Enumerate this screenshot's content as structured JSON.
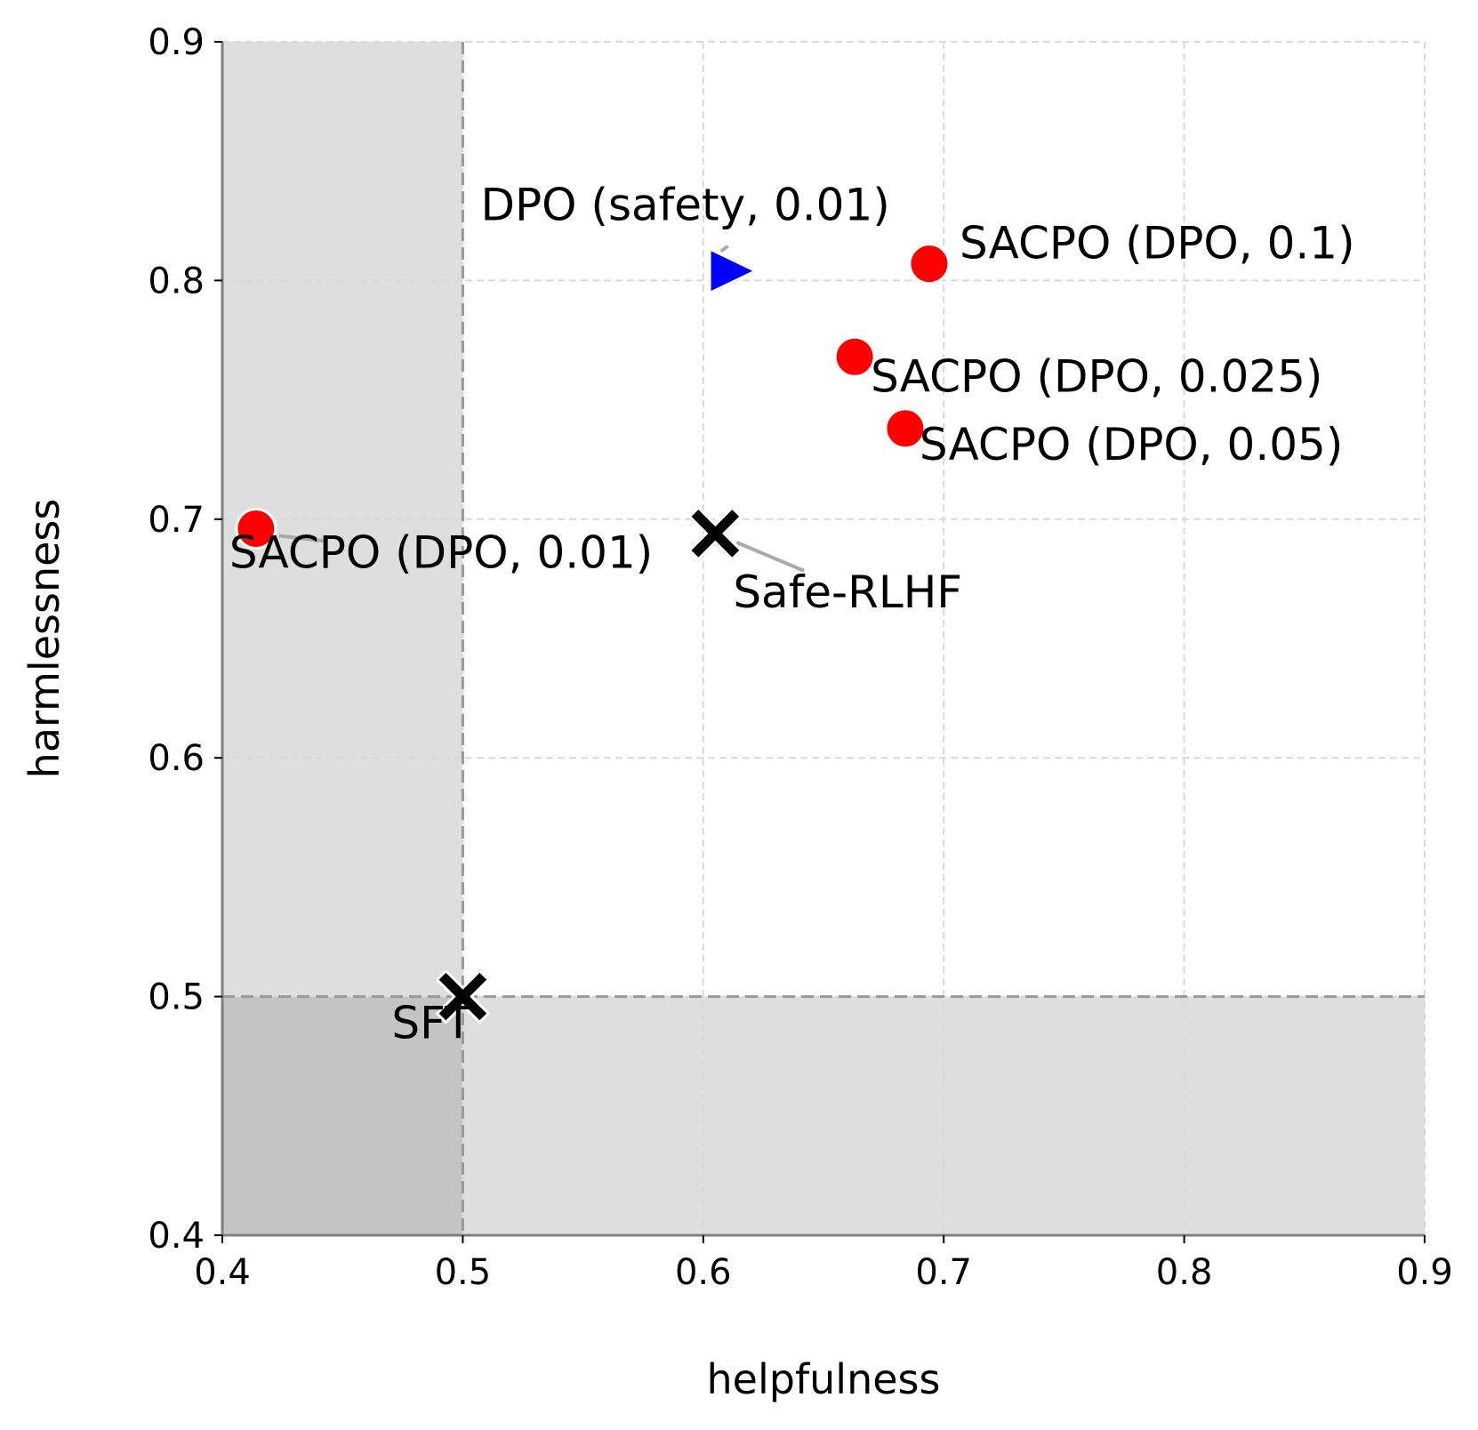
{
  "chart_data": {
    "type": "scatter",
    "title": "",
    "xlabel": "helpfulness",
    "ylabel": "harmlessness",
    "xlim": [
      0.4,
      0.9
    ],
    "ylim": [
      0.4,
      0.9
    ],
    "xticks": [
      "0.4",
      "0.5",
      "0.6",
      "0.7",
      "0.8",
      "0.9"
    ],
    "yticks": [
      "0.4",
      "0.5",
      "0.6",
      "0.7",
      "0.8",
      "0.9"
    ],
    "grid": true,
    "reference_lines": {
      "x": 0.5,
      "y": 0.5
    },
    "shaded_regions": "helpfulness < 0.5 or harmlessness < 0.5",
    "points": [
      {
        "label": "SFT",
        "x": 0.5,
        "y": 0.5,
        "marker": "x",
        "color": "#000000"
      },
      {
        "label": "Safe-RLHF",
        "x": 0.605,
        "y": 0.694,
        "marker": "x",
        "color": "#000000"
      },
      {
        "label": "DPO (safety, 0.01)",
        "x": 0.611,
        "y": 0.804,
        "marker": "triangle-right",
        "color": "#0000ff"
      },
      {
        "label": "SACPO (DPO, 0.01)",
        "x": 0.414,
        "y": 0.696,
        "marker": "circle",
        "color": "#ff0000"
      },
      {
        "label": "SACPO (DPO, 0.025)",
        "x": 0.663,
        "y": 0.768,
        "marker": "circle",
        "color": "#ff0000"
      },
      {
        "label": "SACPO (DPO, 0.05)",
        "x": 0.684,
        "y": 0.738,
        "marker": "circle",
        "color": "#ff0000"
      },
      {
        "label": "SACPO (DPO, 0.1)",
        "x": 0.694,
        "y": 0.807,
        "marker": "circle",
        "color": "#ff0000"
      }
    ]
  }
}
